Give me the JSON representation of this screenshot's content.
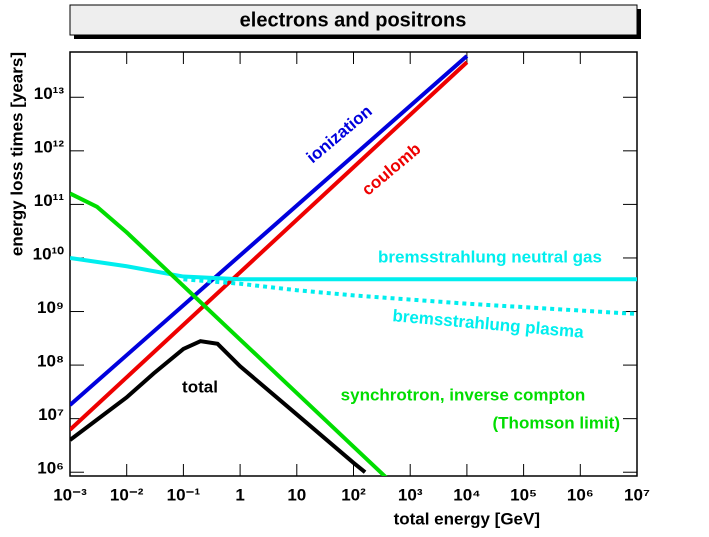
{
  "chart_data": {
    "type": "line",
    "title": "electrons and positrons",
    "x_label": "total energy [GeV]",
    "y_label": "energy loss times [years]",
    "log_x": true,
    "log_y": true,
    "xlim": [
      0.001,
      10000000
    ],
    "ylim": [
      850000,
      70000000000000
    ],
    "xticks": [
      {
        "value": 0.001,
        "label": "10⁻³"
      },
      {
        "value": 0.01,
        "label": "10⁻²"
      },
      {
        "value": 0.1,
        "label": "10⁻¹"
      },
      1,
      10,
      {
        "value": 100,
        "label": "10²"
      },
      {
        "value": 1000,
        "label": "10³"
      },
      {
        "value": 10000,
        "label": "10⁴"
      },
      {
        "value": 100000,
        "label": "10⁵"
      },
      {
        "value": 1000000,
        "label": "10⁶"
      },
      {
        "value": 10000000,
        "label": "10⁷"
      }
    ],
    "yticks": [
      {
        "value": 1000000,
        "label": "10⁶"
      },
      {
        "value": 10000000,
        "label": "10⁷"
      },
      {
        "value": 100000000,
        "label": "10⁸"
      },
      {
        "value": 1000000000,
        "label": "10⁹"
      },
      {
        "value": 10000000000,
        "label": "10¹⁰"
      },
      {
        "value": 100000000000,
        "label": "10¹¹"
      },
      {
        "value": 1000000000000,
        "label": "10¹²"
      },
      {
        "value": 10000000000000,
        "label": "10¹³"
      }
    ],
    "series": [
      {
        "name": "ionization",
        "color": "#0000dd",
        "linestyle": "solid",
        "x": [
          0.001,
          10000
        ],
        "values": [
          18000000,
          59000000000000
        ]
      },
      {
        "name": "coulomb",
        "color": "#ee0000",
        "linestyle": "solid",
        "x": [
          0.001,
          10000
        ],
        "values": [
          6200000,
          45000000000000
        ]
      },
      {
        "name": "bremsstrahlung neutral gas",
        "color": "#00eeee",
        "linestyle": "solid",
        "x": [
          0.001,
          0.01,
          0.1,
          1,
          10000000
        ],
        "values": [
          10000000000,
          7000000000,
          4500000000,
          4000000000,
          4000000000
        ]
      },
      {
        "name": "bremsstrahlung plasma",
        "color": "#00eeee",
        "linestyle": "dotted",
        "x": [
          0.1,
          1,
          10,
          100,
          10000,
          10000000
        ],
        "values": [
          4000000000,
          3300000000,
          2500000000,
          2000000000,
          1400000000,
          900000000
        ]
      },
      {
        "name": "total",
        "color": "#000000",
        "linestyle": "solid",
        "x": [
          0.001,
          0.01,
          0.03,
          0.1,
          0.2,
          0.4,
          1,
          10,
          100,
          160
        ],
        "values": [
          4000000,
          25000000,
          70000000,
          200000000,
          280000000,
          250000000,
          95000000,
          12000000,
          1500000,
          1000000
        ]
      },
      {
        "name": "synchrotron, inverse compton",
        "color": "#00dd00",
        "linestyle": "solid",
        "x": [
          0.001,
          0.003,
          0.01,
          0.03,
          0.1,
          1,
          10,
          100,
          300,
          400
        ],
        "values": [
          160000000000,
          90000000000,
          30000000000,
          10000000000,
          3000000000,
          300000000,
          30000000,
          3000000,
          1000000,
          750000
        ]
      }
    ],
    "annotations": [
      "(Thomson limit)"
    ]
  }
}
